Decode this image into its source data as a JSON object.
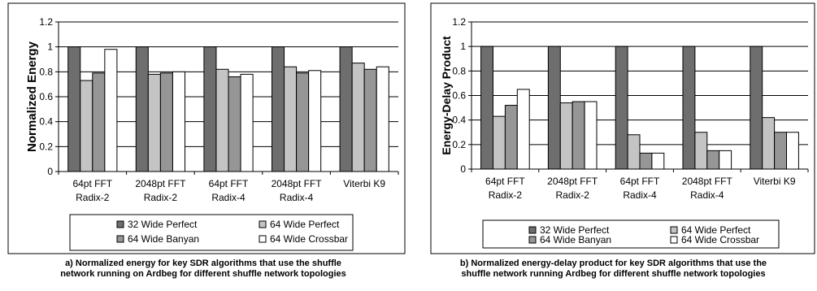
{
  "chart_data": [
    {
      "type": "bar",
      "ylabel": "Normalized Energy",
      "ylim": [
        0,
        1.2
      ],
      "yticks": [
        "0",
        "0.2",
        "0.4",
        "0.6",
        "0.8",
        "1",
        "1.2"
      ],
      "grid": true,
      "legend_position": "bottom",
      "categories": [
        [
          "64pt FFT",
          "Radix-2"
        ],
        [
          "2048pt FFT",
          "Radix-2"
        ],
        [
          "64pt FFT",
          "Radix-4"
        ],
        [
          "2048pt FFT",
          "Radix-4"
        ],
        [
          "Viterbi K9",
          ""
        ]
      ],
      "series": [
        {
          "name": "32 Wide Perfect",
          "color": "#6e6e6e",
          "values": [
            1.0,
            1.0,
            1.0,
            1.0,
            1.0
          ]
        },
        {
          "name": "64 Wide Perfect",
          "color": "#c4c4c4",
          "values": [
            0.73,
            0.78,
            0.82,
            0.84,
            0.87
          ]
        },
        {
          "name": "64 Wide Banyan",
          "color": "#969696",
          "values": [
            0.79,
            0.79,
            0.76,
            0.79,
            0.82
          ]
        },
        {
          "name": "64 Wide Crossbar",
          "color": "#ffffff",
          "values": [
            0.98,
            0.8,
            0.78,
            0.81,
            0.84
          ]
        }
      ],
      "caption": [
        "a) Normalized energy for key SDR algorithms that use the shuffle",
        "network running on Ardbeg for different shuffle network topologies"
      ]
    },
    {
      "type": "bar",
      "ylabel": "Energy-Delay Product",
      "ylim": [
        0,
        1.2
      ],
      "yticks": [
        "0",
        "0.2",
        "0.4",
        "0.6",
        "0.8",
        "1",
        "1.2"
      ],
      "grid": true,
      "legend_position": "bottom",
      "categories": [
        [
          "64pt FFT",
          "Radix-2"
        ],
        [
          "2048pt FFT",
          "Radix-2"
        ],
        [
          "64pt FFT",
          "Radix-4"
        ],
        [
          "2048pt FFT",
          "Radix-4"
        ],
        [
          "Viterbi K9",
          ""
        ]
      ],
      "series": [
        {
          "name": "32 Wide Perfect",
          "color": "#6e6e6e",
          "values": [
            1.0,
            1.0,
            1.0,
            1.0,
            1.0
          ]
        },
        {
          "name": "64 Wide Perfect",
          "color": "#c4c4c4",
          "values": [
            0.43,
            0.54,
            0.28,
            0.3,
            0.42
          ]
        },
        {
          "name": "64 Wide Banyan",
          "color": "#969696",
          "values": [
            0.52,
            0.55,
            0.13,
            0.15,
            0.3
          ]
        },
        {
          "name": "64 Wide Crossbar",
          "color": "#ffffff",
          "values": [
            0.65,
            0.55,
            0.13,
            0.15,
            0.3
          ]
        }
      ],
      "caption": [
        "b) Normalized energy-delay product for key SDR algorithms that use the",
        "shuffle network running Ardbeg for different shuffle network topologies"
      ]
    }
  ]
}
